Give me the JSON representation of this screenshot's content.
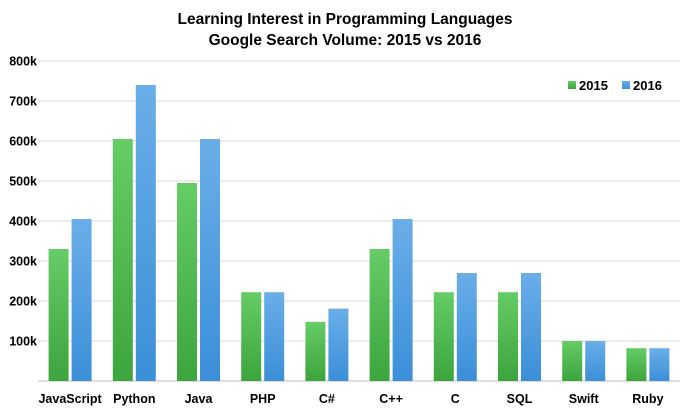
{
  "chart_data": {
    "type": "bar",
    "title": "Learning Interest in Programming Languages",
    "subtitle": "Google Search Volume: 2015 vs 2016",
    "xlabel": "",
    "ylabel": "",
    "categories": [
      "JavaScript",
      "Python",
      "Java",
      "PHP",
      "C#",
      "C++",
      "C",
      "SQL",
      "Swift",
      "Ruby"
    ],
    "series": [
      {
        "name": "2015",
        "color": "#5cb85c",
        "values": [
          330000,
          605000,
          495000,
          222000,
          148000,
          330000,
          222000,
          222000,
          100000,
          82000
        ]
      },
      {
        "name": "2016",
        "color": "#4a9ee0",
        "values": [
          405000,
          740000,
          605000,
          222000,
          181000,
          405000,
          270000,
          270000,
          100000,
          82000
        ]
      }
    ],
    "ylim": [
      0,
      800000
    ],
    "yticks": [
      {
        "value": 100000,
        "label": "100k"
      },
      {
        "value": 200000,
        "label": "200k"
      },
      {
        "value": 300000,
        "label": "300k"
      },
      {
        "value": 400000,
        "label": "400k"
      },
      {
        "value": 500000,
        "label": "500k"
      },
      {
        "value": 600000,
        "label": "600k"
      },
      {
        "value": 700000,
        "label": "700k"
      },
      {
        "value": 800000,
        "label": "800k"
      }
    ],
    "grid": true,
    "legend_position": "top-right"
  }
}
